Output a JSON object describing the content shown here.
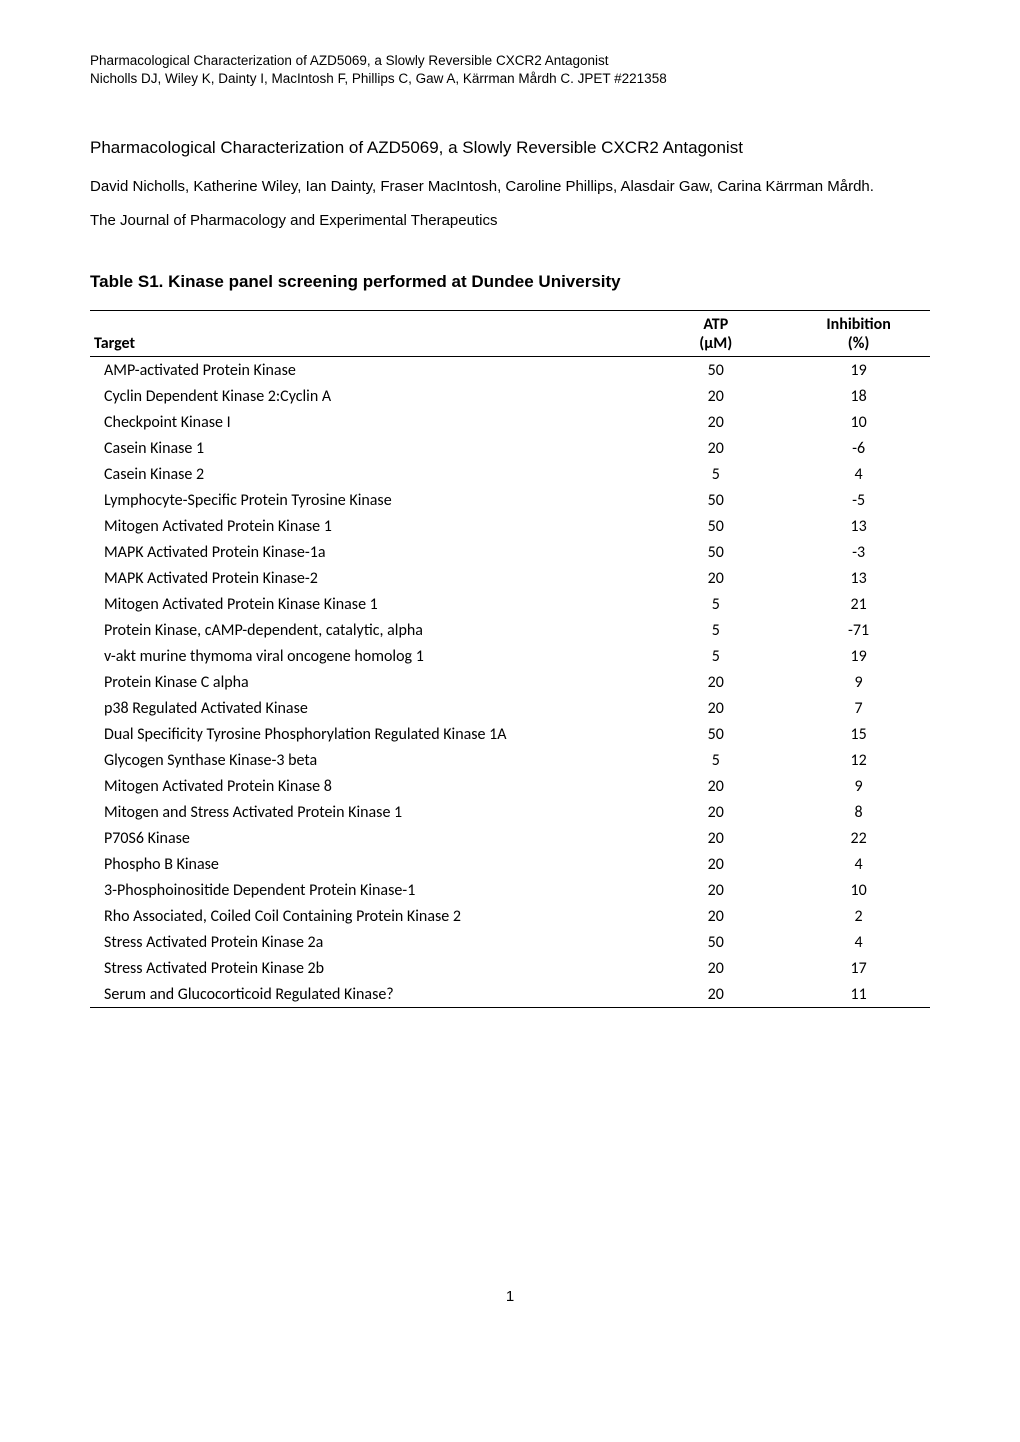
{
  "running_header": {
    "line1": "Pharmacological Characterization of AZD5069, a Slowly Reversible CXCR2 Antagonist",
    "line2": "Nicholls DJ, Wiley K, Dainty I, MacIntosh F, Phillips C, Gaw A, Kärrman Mårdh C.  JPET #221358"
  },
  "title": "Pharmacological Characterization of AZD5069, a Slowly Reversible CXCR2 Antagonist",
  "authors": "David Nicholls, Katherine Wiley, Ian Dainty, Fraser MacIntosh, Caroline Phillips, Alasdair Gaw, Carina Kärrman Mårdh.",
  "journal": "The Journal of Pharmacology and Experimental Therapeutics",
  "table": {
    "caption": "Table S1.   Kinase panel screening  performed at Dundee University",
    "columns": {
      "target": "Target",
      "atp_line1": "ATP",
      "atp_line2": "(µM)",
      "inh_line1": "Inhibition",
      "inh_line2": "(%)"
    },
    "rows": [
      {
        "target": "AMP-activated Protein Kinase",
        "atp": "50",
        "inh": "19"
      },
      {
        "target": "Cyclin Dependent Kinase 2:Cyclin A",
        "atp": "20",
        "inh": "18"
      },
      {
        "target": "Checkpoint Kinase I",
        "atp": "20",
        "inh": "10"
      },
      {
        "target": "Casein Kinase 1",
        "atp": "20",
        "inh": "-6"
      },
      {
        "target": "Casein Kinase 2",
        "atp": "5",
        "inh": "4"
      },
      {
        "target": "Lymphocyte-Specific Protein Tyrosine Kinase",
        "atp": "50",
        "inh": "-5"
      },
      {
        "target": "Mitogen Activated Protein Kinase 1",
        "atp": "50",
        "inh": "13"
      },
      {
        "target": "MAPK Activated Protein Kinase-1a",
        "atp": "50",
        "inh": "-3"
      },
      {
        "target": "MAPK Activated Protein Kinase-2",
        "atp": "20",
        "inh": "13"
      },
      {
        "target": "Mitogen Activated Protein Kinase Kinase 1",
        "atp": "5",
        "inh": "21"
      },
      {
        "target": "Protein Kinase, cAMP-dependent, catalytic, alpha",
        "atp": "5",
        "inh": "-71"
      },
      {
        "target": "v-akt murine thymoma viral oncogene homolog 1",
        "atp": "5",
        "inh": "19"
      },
      {
        "target": "Protein Kinase C alpha",
        "atp": "20",
        "inh": "9"
      },
      {
        "target": "p38 Regulated Activated Kinase",
        "atp": "20",
        "inh": "7"
      },
      {
        "target": "Dual Specificity Tyrosine Phosphorylation Regulated Kinase 1A",
        "atp": "50",
        "inh": "15"
      },
      {
        "target": "Glycogen Synthase Kinase-3 beta",
        "atp": "5",
        "inh": "12"
      },
      {
        "target": "Mitogen Activated Protein Kinase 8",
        "atp": "20",
        "inh": "9"
      },
      {
        "target": "Mitogen and Stress Activated Protein Kinase 1",
        "atp": "20",
        "inh": "8"
      },
      {
        "target": "P70S6 Kinase",
        "atp": "20",
        "inh": "22"
      },
      {
        "target": "Phospho B Kinase",
        "atp": "20",
        "inh": "4"
      },
      {
        "target": "3-Phosphoinositide Dependent Protein Kinase-1",
        "atp": "20",
        "inh": "10"
      },
      {
        "target": "Rho Associated, Coiled Coil Containing Protein Kinase 2",
        "atp": "20",
        "inh": "2"
      },
      {
        "target": "Stress Activated Protein Kinase 2a",
        "atp": "50",
        "inh": "4"
      },
      {
        "target": "Stress Activated Protein Kinase 2b",
        "atp": "20",
        "inh": "17"
      },
      {
        "target": "Serum and Glucocorticoid Regulated Kinase?",
        "atp": "20",
        "inh": "11"
      }
    ]
  },
  "page_number": "1"
}
